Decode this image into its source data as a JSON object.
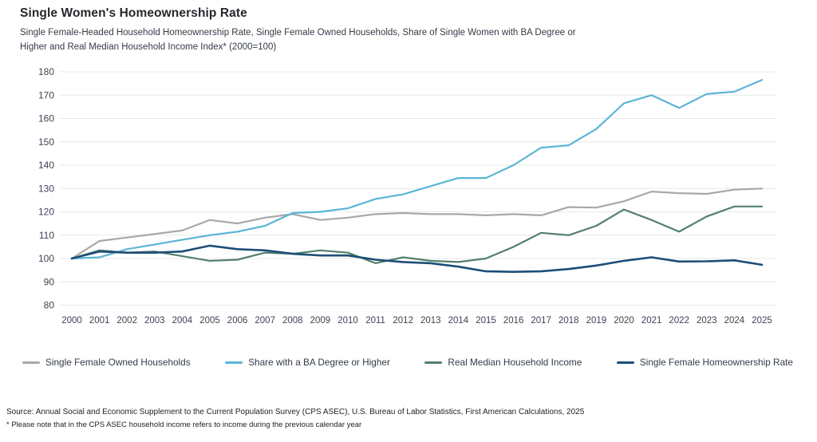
{
  "header": {
    "title": "Single Women's Homeownership Rate",
    "subtitle_line1": "Single Female-Headed Household Homeownership Rate, Single Female Owned Households, Share of Single Women with BA Degree or",
    "subtitle_line2": "Higher and Real Median Household Income Index* (2000=100)"
  },
  "chart_data": {
    "type": "line",
    "title": "Single Women's Homeownership Rate",
    "xlabel": "",
    "ylabel": "",
    "ylim": [
      80,
      180
    ],
    "ytick_step": 10,
    "grid": true,
    "legend_position": "bottom",
    "x": [
      2000,
      2001,
      2002,
      2003,
      2004,
      2005,
      2006,
      2007,
      2008,
      2009,
      2010,
      2011,
      2012,
      2013,
      2014,
      2015,
      2016,
      2017,
      2018,
      2019,
      2020,
      2021,
      2022,
      2023,
      2024,
      2025
    ],
    "series": [
      {
        "name": "Single Female Owned Households",
        "color": "#a8a8a8",
        "stroke_width": 2.2,
        "values": [
          100,
          107.5,
          109,
          110.5,
          112,
          116.5,
          115,
          117.5,
          119,
          116.5,
          117.5,
          119,
          119.5,
          119,
          119,
          118.5,
          119,
          118.5,
          122,
          121.8,
          124.5,
          128.7,
          128,
          127.7,
          129.5,
          130
        ]
      },
      {
        "name": "Share with a BA Degree or Higher",
        "color": "#5bb5d6",
        "stroke_width": 2.2,
        "values": [
          100,
          100.5,
          104,
          106,
          108,
          110,
          111.5,
          114,
          119.5,
          120,
          121.5,
          125.5,
          127.5,
          131,
          134.5,
          134.5,
          140,
          147.5,
          148.5,
          155.5,
          166.5,
          170,
          164.5,
          170.5,
          171.5,
          176.5
        ]
      },
      {
        "name": "Real Median Household Income",
        "color": "#53806a",
        "stroke_width": 2.2,
        "values": [
          100,
          103.5,
          102.5,
          103,
          101,
          99,
          99.5,
          102.5,
          102,
          103.5,
          102.5,
          98,
          100.5,
          99,
          98.5,
          100,
          105,
          111,
          110,
          114,
          121,
          116.5,
          111.5,
          118,
          122.3,
          122.3
        ]
      },
      {
        "name": "Single Female Homeownership Rate",
        "color": "#1d4d78",
        "stroke_width": 2.6,
        "values": [
          100,
          103,
          102.5,
          102.5,
          103,
          105.5,
          104,
          103.5,
          102,
          101.3,
          101.3,
          99.5,
          98.5,
          98,
          96.5,
          94.5,
          94.3,
          94.5,
          95.5,
          97,
          99,
          100.5,
          98.7,
          98.8,
          99.2,
          97.3
        ]
      }
    ]
  },
  "footer": {
    "source": "Source: Annual Social and Economic Supplement to the Current Population Survey (CPS ASEC), U.S. Bureau of Labor Statistics,  First American Calculations, 2025",
    "footnote": "* Please note that in the CPS ASEC household income refers to income during the previous calendar year"
  }
}
